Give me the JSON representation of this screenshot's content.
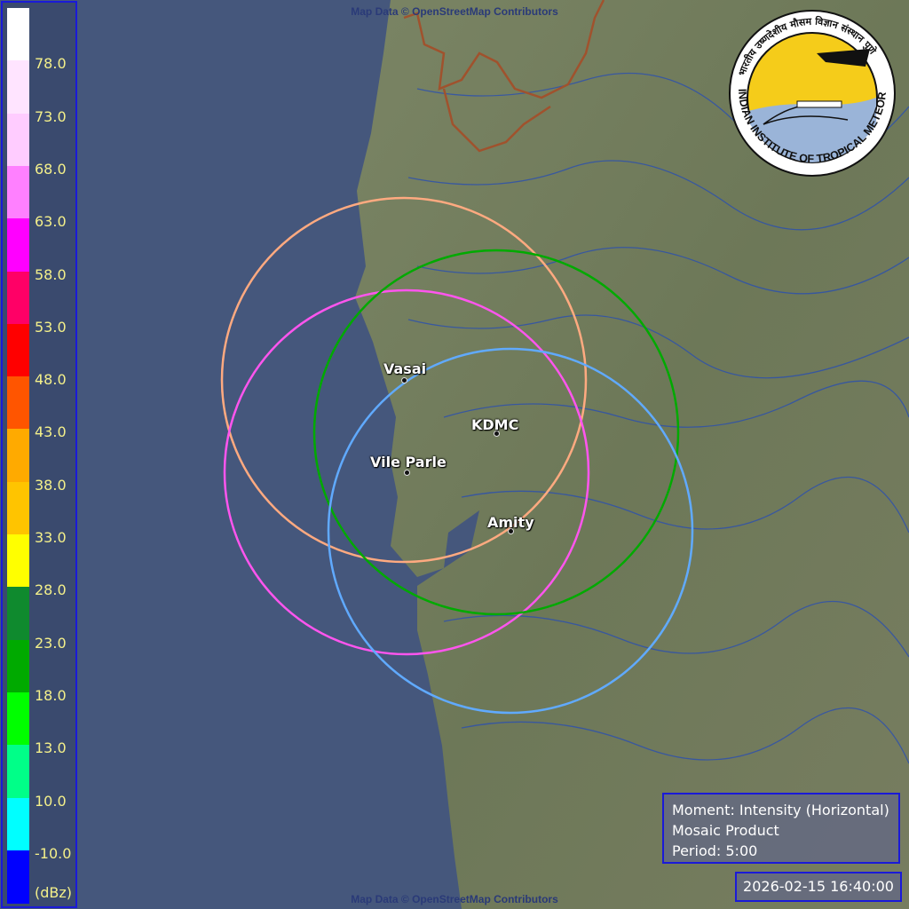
{
  "attribution": "Map Data © OpenStreetMap Contributors",
  "legend": {
    "unit": "(dBz)",
    "colors": [
      "#ffffff",
      "#ffe4ff",
      "#ffccff",
      "#ff80ff",
      "#ff00ff",
      "#ff0066",
      "#ff0000",
      "#ff5500",
      "#ffaa00",
      "#ffc400",
      "#ffff00",
      "#0f8a2e",
      "#00aa00",
      "#00ff00",
      "#00ff88",
      "#00ffff",
      "#0000ff"
    ],
    "labels": [
      "78.0",
      "73.0",
      "68.0",
      "63.0",
      "58.0",
      "53.0",
      "48.0",
      "43.0",
      "38.0",
      "33.0",
      "28.0",
      "23.0",
      "18.0",
      "13.0",
      "10.0",
      "-10.0"
    ]
  },
  "radars": [
    {
      "name": "Vasai",
      "color": "#ffaa80"
    },
    {
      "name": "Vile Parle",
      "color": "#ff55ee"
    },
    {
      "name": "KDMC",
      "color": "#00aa00"
    },
    {
      "name": "Amity",
      "color": "#60aaff"
    }
  ],
  "logo": {
    "english": "INDIAN INSTITUTE OF TROPICAL METEOROLOGY PUNE",
    "hindi": "भारतीय उष्णदेशीय मौसम विज्ञान संस्थान पुणे"
  },
  "info": {
    "moment": "Moment: Intensity (Horizontal)",
    "product": "Mosaic Product",
    "period": "Period: 5:00",
    "timestamp": "2026-02-15 16:40:00"
  },
  "colors": {
    "sea": "#45577c",
    "land": "#6e7a5a",
    "rivers": "#2a4fb0",
    "border": "#a0522d"
  }
}
